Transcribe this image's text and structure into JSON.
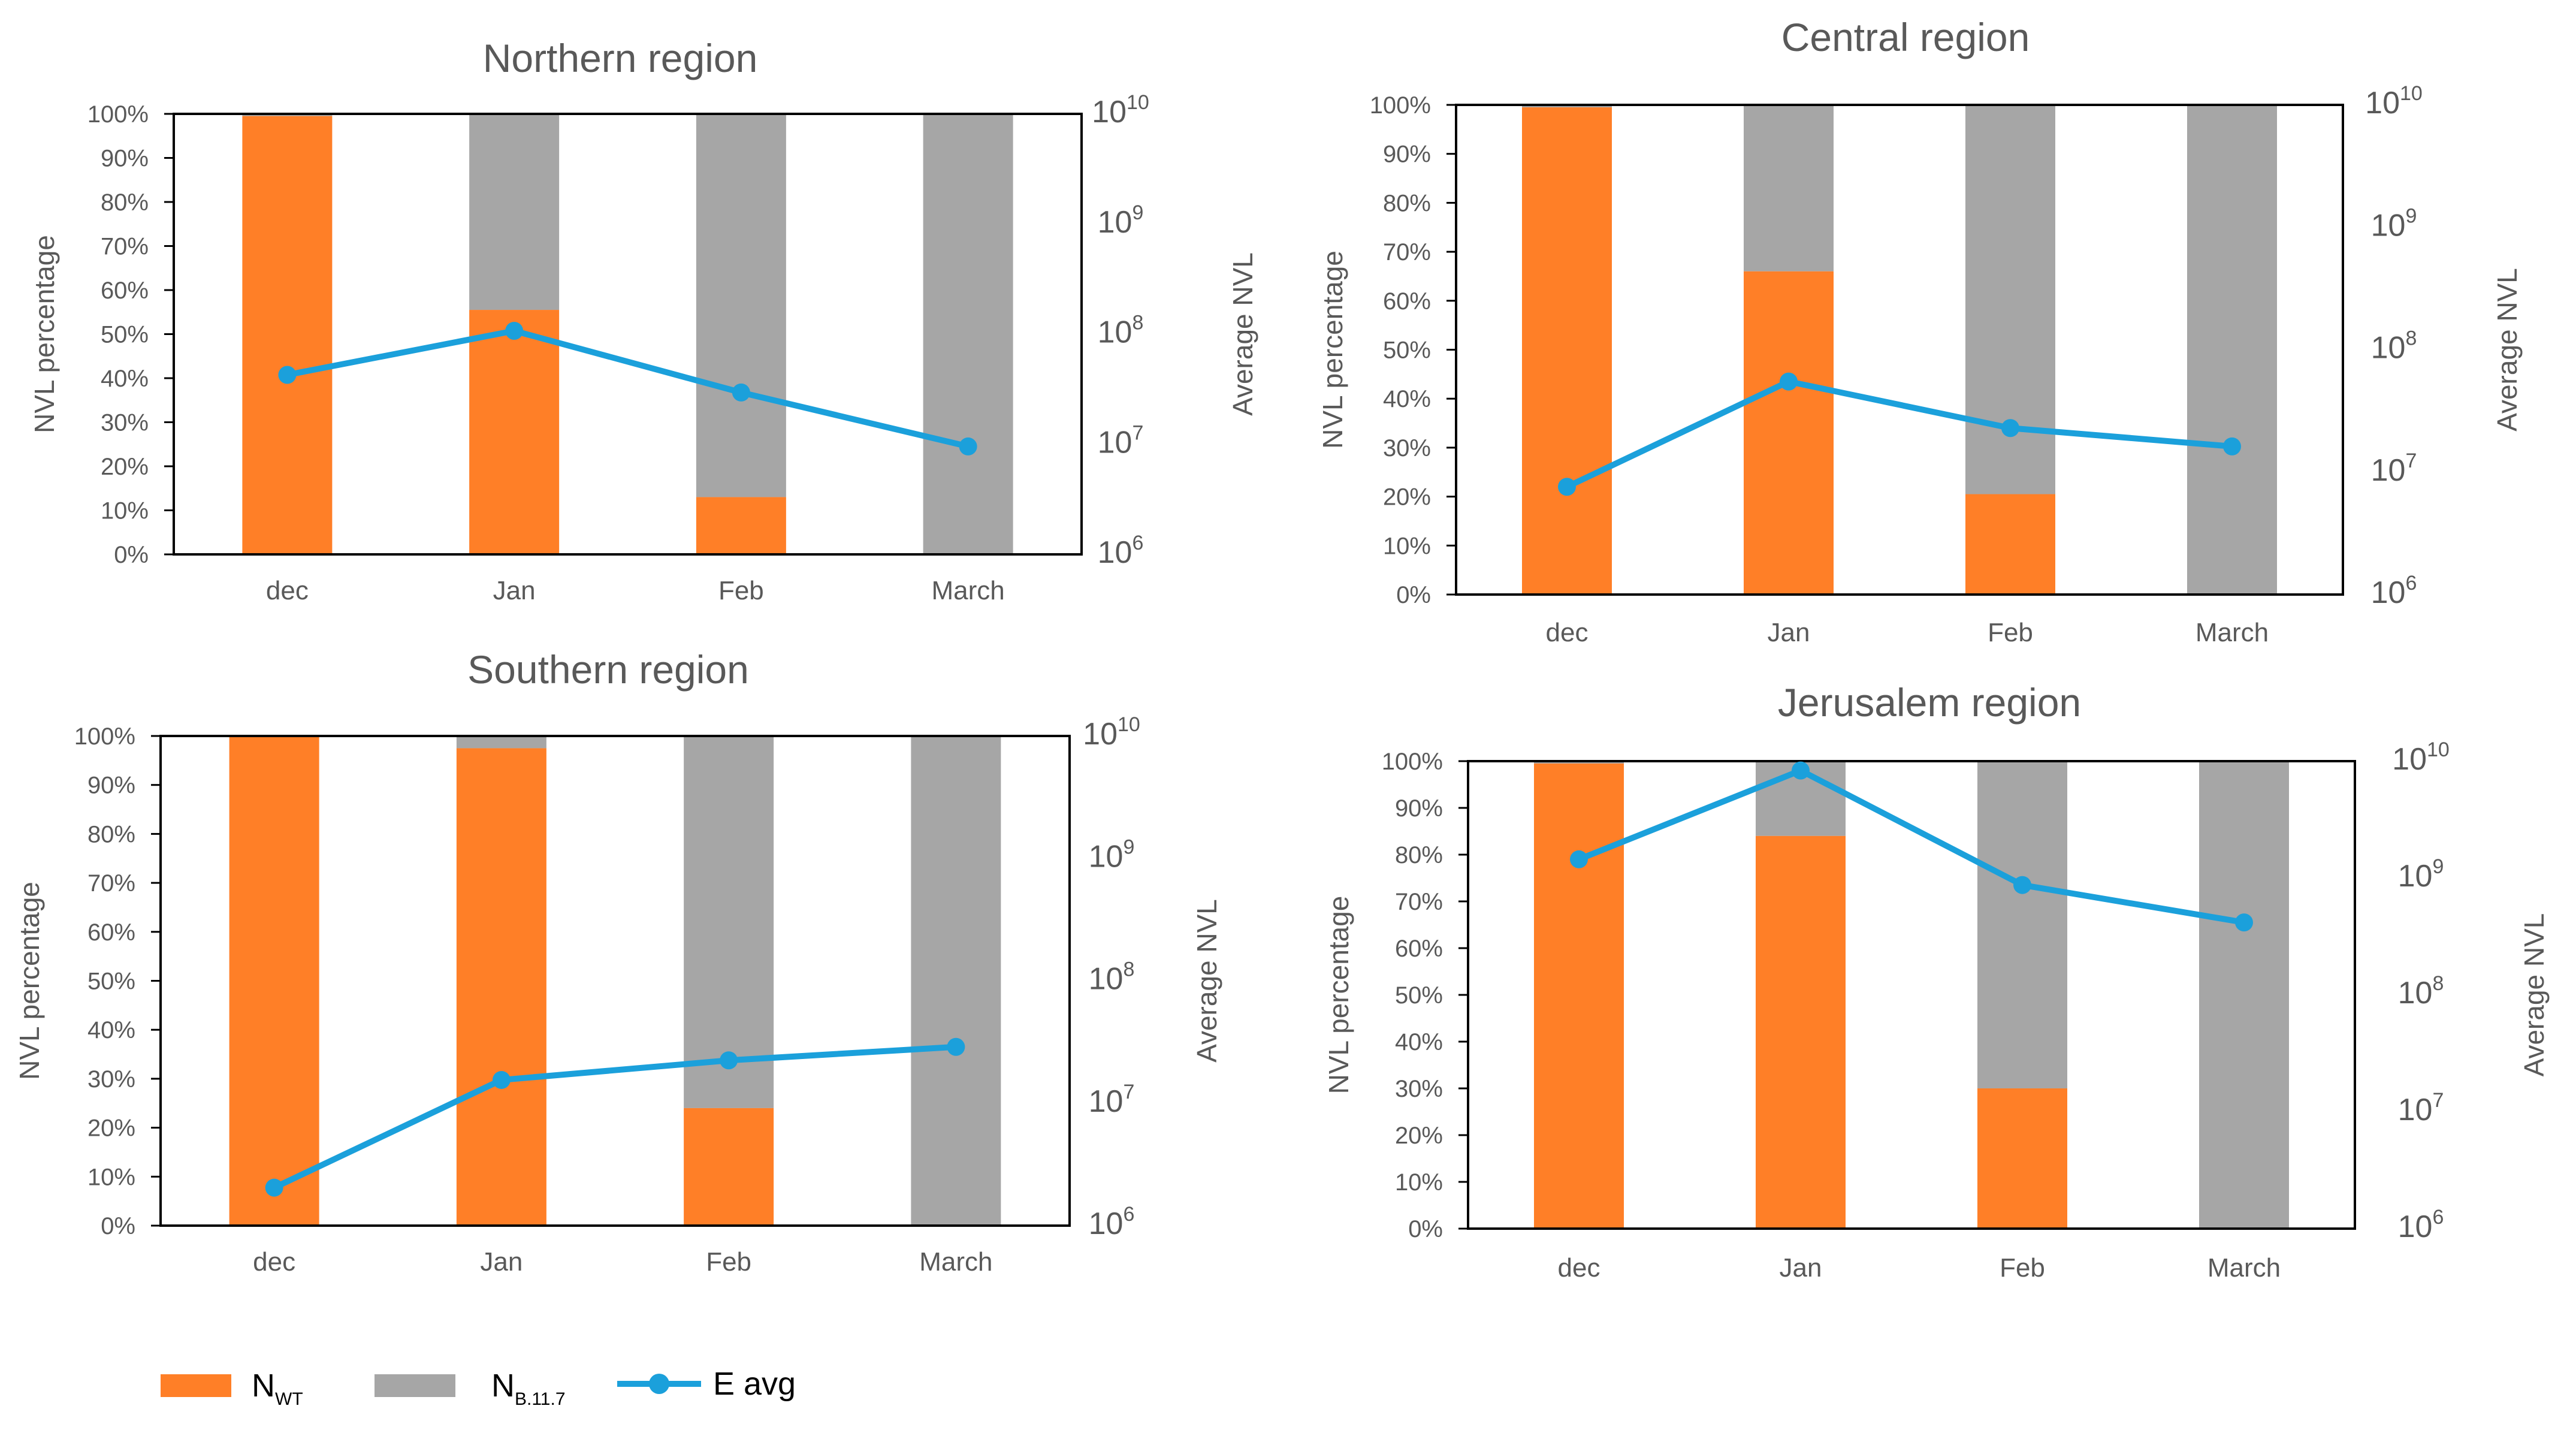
{
  "colors": {
    "wt": "#ff7f27",
    "b117": "#a6a6a6",
    "avg": "#1ba0db",
    "axis": "#000000",
    "text": "#595959"
  },
  "legend": {
    "wt_main": "N",
    "wt_sub": "WT",
    "b117_main": "N",
    "b117_sub": "B.11.7",
    "avg_label": "E avg"
  },
  "chart_data": [
    {
      "type": "bar",
      "stacked": true,
      "title": "Northern region",
      "ylabel": "NVL percentage",
      "y2label": "Average NVL",
      "categories": [
        "dec",
        "Jan",
        "Feb",
        "March"
      ],
      "ylim": [
        0,
        100
      ],
      "yticks": [
        "0%",
        "10%",
        "20%",
        "30%",
        "40%",
        "50%",
        "60%",
        "70%",
        "80%",
        "90%",
        "100%"
      ],
      "y2ticks": [
        {
          "base": "10",
          "exp": "6"
        },
        {
          "base": "10",
          "exp": "7"
        },
        {
          "base": "10",
          "exp": "8"
        },
        {
          "base": "10",
          "exp": "9"
        },
        {
          "base": "10",
          "exp": "10"
        }
      ],
      "y2lim_log10": [
        6,
        10
      ],
      "series": [
        {
          "name": "NWT",
          "values": [
            99.5,
            55.5,
            13,
            0
          ]
        },
        {
          "name": "NB.11.7",
          "values": [
            0.5,
            44.5,
            87,
            100
          ]
        },
        {
          "name": "E avg",
          "axis": "secondary",
          "log10_values": [
            7.63,
            8.03,
            7.47,
            6.98
          ]
        }
      ]
    },
    {
      "type": "bar",
      "stacked": true,
      "title": "Central region",
      "ylabel": "NVL percentage",
      "y2label": "Average NVL",
      "categories": [
        "dec",
        "Jan",
        "Feb",
        "March"
      ],
      "ylim": [
        0,
        100
      ],
      "yticks": [
        "0%",
        "10%",
        "20%",
        "30%",
        "40%",
        "50%",
        "60%",
        "70%",
        "80%",
        "90%",
        "100%"
      ],
      "y2ticks": [
        {
          "base": "10",
          "exp": "6"
        },
        {
          "base": "10",
          "exp": "7"
        },
        {
          "base": "10",
          "exp": "8"
        },
        {
          "base": "10",
          "exp": "9"
        },
        {
          "base": "10",
          "exp": "10"
        }
      ],
      "y2lim_log10": [
        6,
        10
      ],
      "series": [
        {
          "name": "NWT",
          "values": [
            99.5,
            66,
            20.5,
            0
          ]
        },
        {
          "name": "NB.11.7",
          "values": [
            0.5,
            34,
            79.5,
            100
          ]
        },
        {
          "name": "E avg",
          "axis": "secondary",
          "log10_values": [
            6.88,
            7.74,
            7.36,
            7.21
          ]
        }
      ]
    },
    {
      "type": "bar",
      "stacked": true,
      "title": "Southern region",
      "ylabel": "NVL percentage",
      "y2label": "Average NVL",
      "categories": [
        "dec",
        "Jan",
        "Feb",
        "March"
      ],
      "ylim": [
        0,
        100
      ],
      "yticks": [
        "0%",
        "10%",
        "20%",
        "30%",
        "40%",
        "50%",
        "60%",
        "70%",
        "80%",
        "90%",
        "100%"
      ],
      "y2ticks": [
        {
          "base": "10",
          "exp": "6"
        },
        {
          "base": "10",
          "exp": "7"
        },
        {
          "base": "10",
          "exp": "8"
        },
        {
          "base": "10",
          "exp": "9"
        },
        {
          "base": "10",
          "exp": "10"
        }
      ],
      "y2lim_log10": [
        6,
        10
      ],
      "series": [
        {
          "name": "NWT",
          "values": [
            100,
            97.5,
            24,
            0
          ]
        },
        {
          "name": "NB.11.7",
          "values": [
            0,
            2.5,
            76,
            100
          ]
        },
        {
          "name": "E avg",
          "axis": "secondary",
          "log10_values": [
            6.31,
            7.19,
            7.35,
            7.46
          ]
        }
      ]
    },
    {
      "type": "bar",
      "stacked": true,
      "title": "Jerusalem region",
      "ylabel": "NVL percentage",
      "y2label": "Average NVL",
      "categories": [
        "dec",
        "Jan",
        "Feb",
        "March"
      ],
      "ylim": [
        0,
        100
      ],
      "yticks": [
        "0%",
        "10%",
        "20%",
        "30%",
        "40%",
        "50%",
        "60%",
        "70%",
        "80%",
        "90%",
        "100%"
      ],
      "y2ticks": [
        {
          "base": "10",
          "exp": "6"
        },
        {
          "base": "10",
          "exp": "7"
        },
        {
          "base": "10",
          "exp": "8"
        },
        {
          "base": "10",
          "exp": "9"
        },
        {
          "base": "10",
          "exp": "10"
        }
      ],
      "y2lim_log10": [
        6,
        10
      ],
      "series": [
        {
          "name": "NWT",
          "values": [
            99.5,
            84,
            30,
            0
          ]
        },
        {
          "name": "NB.11.7",
          "values": [
            0.5,
            16,
            70,
            100
          ]
        },
        {
          "name": "E avg",
          "axis": "secondary",
          "log10_values": [
            9.16,
            9.92,
            8.94,
            8.62
          ]
        }
      ]
    }
  ]
}
